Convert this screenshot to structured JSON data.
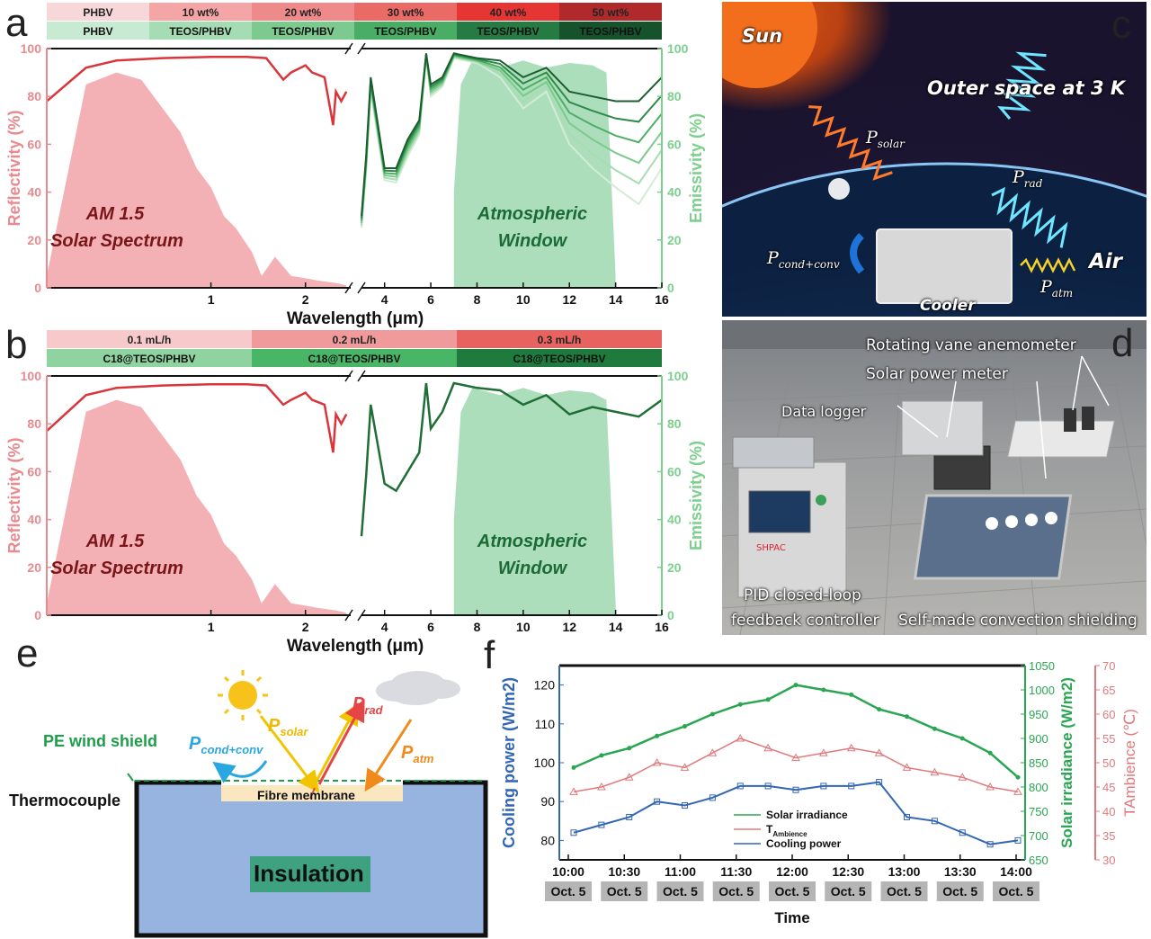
{
  "panel_labels": {
    "a": "a",
    "b": "b",
    "c": "c",
    "d": "d",
    "e": "e",
    "f": "f"
  },
  "colors": {
    "reflect_red": "#d9353a",
    "reflect_axis": "#e88a8f",
    "am15_fill": "#f2a3a8",
    "window_fill": "#9fd8b0",
    "emiss_axis": "#7ccf8c",
    "emiss_dark": "#1f6e36",
    "solar_green": "#2aa652",
    "tamb_red": "#e0797c",
    "cooling_blue": "#3366b3"
  },
  "panel_a": {
    "top_bar": [
      "PHBV",
      "10 wt%",
      "20 wt%",
      "30 wt%",
      "40 wt%",
      "50 wt%"
    ],
    "bottom_bar": [
      "PHBV",
      "TEOS/PHBV",
      "TEOS/PHBV",
      "TEOS/PHBV",
      "TEOS/PHBV",
      "TEOS/PHBV"
    ],
    "ylabel_left": "Reflectivity (%)",
    "ylabel_right": "Emissivity (%)",
    "xlabel": "Wavelength (μm)",
    "yticks": [
      "0",
      "20",
      "40",
      "60",
      "80",
      "100"
    ],
    "xticks_left": [
      "1",
      "2"
    ],
    "xticks_right": [
      "4",
      "6",
      "8",
      "10",
      "12",
      "14",
      "16"
    ],
    "ann_am15": [
      "AM 1.5",
      "Solar Spectrum"
    ],
    "ann_window": [
      "Atmospheric",
      "Window"
    ]
  },
  "panel_b": {
    "top_bar": [
      "0.1 mL/h",
      "0.2 mL/h",
      "0.3 mL/h"
    ],
    "bottom_bar": [
      "C18@TEOS/PHBV",
      "C18@TEOS/PHBV",
      "C18@TEOS/PHBV"
    ],
    "ylabel_left": "Reflectivity (%)",
    "ylabel_right": "Emissivity (%)",
    "xlabel": "Wavelength (μm)",
    "yticks": [
      "0",
      "20",
      "40",
      "60",
      "80",
      "100"
    ],
    "xticks_left": [
      "1",
      "2"
    ],
    "xticks_right": [
      "4",
      "6",
      "8",
      "10",
      "12",
      "14",
      "16"
    ],
    "ann_am15": [
      "AM 1.5",
      "Solar Spectrum"
    ],
    "ann_window": [
      "Atmospheric",
      "Window"
    ]
  },
  "panel_c": {
    "sun": "Sun",
    "outer": "Outer space at 3 K",
    "p_solar": "P",
    "p_solar_sub": "solar",
    "p_rad": "P",
    "p_rad_sub": "rad",
    "p_cond": "P",
    "p_cond_sub": "cond+conv",
    "p_atm": "P",
    "p_atm_sub": "atm",
    "air": "Air",
    "cooler": "Cooler"
  },
  "panel_d": {
    "anemometer": "Rotating vane anemometer",
    "power_meter": "Solar power meter",
    "data_logger": "Data logger",
    "pid1": "PID closed-loop",
    "pid2": "feedback controller",
    "shield": "Self-made convection shielding",
    "brand": "SHPAC"
  },
  "panel_e": {
    "pe_shield": "PE wind shield",
    "thermocouple": "Thermocouple",
    "membrane": "Fibre membrane",
    "insulation": "Insulation",
    "p": "P",
    "solar": "solar",
    "rad": "rad",
    "atm": "atm",
    "cond": "cond+conv"
  },
  "panel_f": {
    "xlabel": "Time",
    "ylabel_left": "Cooling power (W/m",
    "ylabel_left_sup": "2",
    "ylabel_left_end": ")",
    "ylabel_mid": "Solar irradiance (W/m",
    "ylabel_mid_sup": "2",
    "ylabel_mid_end": ")",
    "ylabel_right": "T",
    "ylabel_right_sub": "Ambience",
    "ylabel_right_end": " (℃)",
    "xticks": [
      "10:00",
      "10:30",
      "11:00",
      "11:30",
      "12:00",
      "12:30",
      "13:00",
      "13:30",
      "14:00"
    ],
    "date": "Oct. 5",
    "yticks_left": [
      "80",
      "90",
      "100",
      "110",
      "120"
    ],
    "yticks_mid": [
      "650",
      "700",
      "750",
      "800",
      "850",
      "900",
      "950",
      "1000",
      "1050"
    ],
    "yticks_right": [
      "30",
      "35",
      "40",
      "45",
      "50",
      "55",
      "60",
      "65",
      "70"
    ],
    "legend": [
      {
        "name": "Solar irradiance"
      },
      {
        "name": "T",
        "sub": "Ambience"
      },
      {
        "name": "Cooling power"
      }
    ]
  },
  "chart_data": [
    {
      "type": "line",
      "id": "a",
      "x_unit": "μm",
      "series": [
        {
          "axis": "left",
          "label": "reflectivity",
          "x": [
            0.3,
            0.4,
            0.5,
            0.7,
            1.0,
            1.3,
            1.5,
            1.7,
            1.8,
            2.0,
            2.1,
            2.3,
            2.45,
            2.5,
            2.6,
            2.7
          ],
          "y": [
            78,
            92,
            95,
            96,
            96.5,
            96.5,
            96,
            87,
            90,
            93,
            90,
            88,
            68,
            82,
            78,
            82
          ]
        },
        {
          "axis": "right",
          "label": "emissivity (highest)",
          "x": [
            3.0,
            3.2,
            3.4,
            4.0,
            4.5,
            5.0,
            5.5,
            5.8,
            6.0,
            6.5,
            7.0,
            7.5,
            8,
            9,
            10,
            11,
            12,
            13,
            14,
            15,
            16
          ],
          "y": [
            30,
            55,
            88,
            50,
            50,
            62,
            70,
            98,
            85,
            88,
            98,
            97,
            96,
            95,
            88,
            92,
            82,
            80,
            78,
            78,
            88
          ]
        },
        {
          "axis": "right",
          "label": "emissivity (lowest)",
          "x": [
            3.0,
            3.2,
            3.4,
            4.0,
            4.5,
            5.0,
            5.5,
            5.8,
            6.0,
            6.5,
            7.0,
            7.5,
            8,
            9,
            10,
            11,
            12,
            13,
            14,
            15,
            16
          ],
          "y": [
            25,
            48,
            82,
            45,
            44,
            55,
            64,
            96,
            80,
            84,
            96,
            95,
            94,
            88,
            75,
            82,
            60,
            50,
            42,
            35,
            50
          ]
        },
        {
          "axis": "left",
          "label": "AM 1.5",
          "x": [
            0.3,
            0.4,
            0.5,
            0.6,
            0.8,
            0.9,
            1.0,
            1.1,
            1.2,
            1.35,
            1.45,
            1.6,
            1.8,
            2.0,
            2.2,
            2.5,
            2.7
          ],
          "y": [
            5,
            85,
            90,
            87,
            65,
            50,
            42,
            30,
            25,
            15,
            5,
            13,
            5,
            4,
            3,
            2,
            1
          ]
        },
        {
          "axis": "right",
          "label": "Atmospheric Window",
          "x": [
            7.0,
            7.3,
            7.8,
            9.0,
            10,
            11,
            12,
            13,
            13.6,
            14
          ],
          "y": [
            40,
            85,
            95,
            92,
            95,
            92,
            94,
            93,
            90,
            5
          ]
        }
      ]
    },
    {
      "type": "line",
      "id": "b",
      "x_unit": "μm",
      "series": [
        {
          "axis": "left",
          "label": "reflectivity",
          "x": [
            0.3,
            0.4,
            0.5,
            0.7,
            1.0,
            1.3,
            1.5,
            1.7,
            1.8,
            2.0,
            2.1,
            2.3,
            2.45,
            2.5,
            2.6,
            2.7
          ],
          "y": [
            77,
            92,
            95,
            96,
            96.5,
            96.5,
            96,
            88,
            90,
            93,
            90,
            88,
            68,
            84,
            80,
            84
          ]
        },
        {
          "axis": "right",
          "label": "emissivity",
          "x": [
            3.0,
            3.2,
            3.4,
            4.0,
            4.5,
            5.0,
            5.5,
            5.8,
            6.0,
            6.5,
            7.0,
            7.5,
            8,
            9,
            10,
            11,
            12,
            13,
            14,
            15,
            16
          ],
          "y": [
            33,
            58,
            88,
            55,
            52,
            60,
            68,
            97,
            78,
            85,
            97,
            96,
            95,
            94,
            88,
            92,
            84,
            87,
            85,
            83,
            90
          ]
        },
        {
          "axis": "left",
          "label": "AM 1.5",
          "x": [
            0.3,
            0.4,
            0.5,
            0.6,
            0.8,
            0.9,
            1.0,
            1.1,
            1.2,
            1.35,
            1.45,
            1.6,
            1.8,
            2.0,
            2.2,
            2.5,
            2.7
          ],
          "y": [
            5,
            85,
            90,
            87,
            65,
            50,
            42,
            30,
            25,
            15,
            5,
            13,
            5,
            4,
            3,
            2,
            1
          ]
        },
        {
          "axis": "right",
          "label": "Atmospheric Window",
          "x": [
            7.0,
            7.3,
            7.8,
            9.0,
            10,
            11,
            12,
            13,
            13.6,
            14
          ],
          "y": [
            40,
            85,
            95,
            92,
            95,
            92,
            94,
            93,
            90,
            5
          ]
        }
      ]
    },
    {
      "type": "line",
      "id": "f",
      "x": [
        "10:00",
        "10:15",
        "10:30",
        "10:45",
        "11:00",
        "11:15",
        "11:30",
        "11:45",
        "12:00",
        "12:15",
        "12:30",
        "12:45",
        "13:00",
        "13:15",
        "13:30",
        "13:45",
        "14:00"
      ],
      "series": [
        {
          "name": "Solar irradiance",
          "axis": "mid",
          "values": [
            840,
            865,
            880,
            905,
            925,
            950,
            970,
            980,
            1010,
            1000,
            990,
            960,
            945,
            920,
            900,
            870,
            820
          ]
        },
        {
          "name": "T Ambience",
          "axis": "right",
          "values": [
            44,
            45,
            47,
            50,
            49,
            52,
            55,
            53,
            51,
            52,
            53,
            52,
            49,
            48,
            47,
            45,
            44
          ]
        },
        {
          "name": "Cooling power",
          "axis": "left",
          "values": [
            82,
            84,
            86,
            90,
            89,
            91,
            94,
            94,
            93,
            94,
            94,
            95,
            86,
            85,
            82,
            79,
            80
          ]
        }
      ]
    }
  ]
}
